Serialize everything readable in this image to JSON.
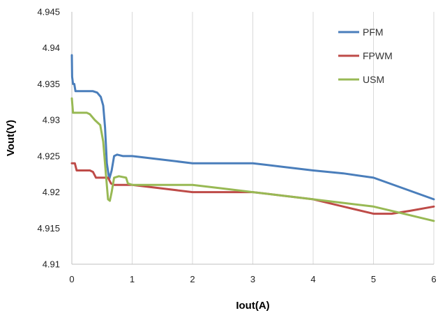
{
  "chart_data": {
    "type": "line",
    "title": "",
    "xlabel": "Iout(A)",
    "ylabel": "Vout(V)",
    "xlim": [
      0,
      6
    ],
    "ylim": [
      4.91,
      4.945
    ],
    "x_ticks": [
      "0",
      "1",
      "2",
      "3",
      "4",
      "5",
      "6"
    ],
    "y_ticks": [
      "4.91",
      "4.915",
      "4.92",
      "4.925",
      "4.93",
      "4.935",
      "4.94",
      "4.945"
    ],
    "grid": "vertical",
    "legend_position": "top-right",
    "series": [
      {
        "name": "PFM",
        "color": "#4a7ebb",
        "points": [
          [
            0,
            4.939
          ],
          [
            0.005,
            4.936
          ],
          [
            0.02,
            4.935
          ],
          [
            0.04,
            4.935
          ],
          [
            0.06,
            4.934
          ],
          [
            0.35,
            4.934
          ],
          [
            0.42,
            4.9338
          ],
          [
            0.48,
            4.9332
          ],
          [
            0.52,
            4.932
          ],
          [
            0.55,
            4.929
          ],
          [
            0.58,
            4.924
          ],
          [
            0.62,
            4.9218
          ],
          [
            0.66,
            4.923
          ],
          [
            0.7,
            4.925
          ],
          [
            0.75,
            4.9252
          ],
          [
            0.85,
            4.925
          ],
          [
            1.0,
            4.925
          ],
          [
            1.5,
            4.9245
          ],
          [
            2.0,
            4.924
          ],
          [
            2.5,
            4.924
          ],
          [
            3.0,
            4.924
          ],
          [
            3.5,
            4.9235
          ],
          [
            4.0,
            4.923
          ],
          [
            4.5,
            4.9226
          ],
          [
            5.0,
            4.922
          ],
          [
            5.5,
            4.9205
          ],
          [
            6.0,
            4.919
          ]
        ]
      },
      {
        "name": "FPWM",
        "color": "#be4b48",
        "points": [
          [
            0,
            4.924
          ],
          [
            0.05,
            4.924
          ],
          [
            0.08,
            4.923
          ],
          [
            0.3,
            4.923
          ],
          [
            0.35,
            4.9228
          ],
          [
            0.4,
            4.922
          ],
          [
            0.5,
            4.922
          ],
          [
            0.6,
            4.922
          ],
          [
            0.65,
            4.9212
          ],
          [
            0.7,
            4.921
          ],
          [
            1.0,
            4.921
          ],
          [
            1.5,
            4.9205
          ],
          [
            2.0,
            4.92
          ],
          [
            2.5,
            4.92
          ],
          [
            3.0,
            4.92
          ],
          [
            3.5,
            4.9195
          ],
          [
            4.0,
            4.919
          ],
          [
            4.5,
            4.918
          ],
          [
            5.0,
            4.917
          ],
          [
            5.3,
            4.917
          ],
          [
            5.6,
            4.9174
          ],
          [
            6.0,
            4.918
          ]
        ]
      },
      {
        "name": "USM",
        "color": "#98b954",
        "points": [
          [
            0,
            4.933
          ],
          [
            0.02,
            4.931
          ],
          [
            0.25,
            4.931
          ],
          [
            0.3,
            4.9308
          ],
          [
            0.38,
            4.93
          ],
          [
            0.47,
            4.9293
          ],
          [
            0.52,
            4.927
          ],
          [
            0.56,
            4.923
          ],
          [
            0.6,
            4.919
          ],
          [
            0.63,
            4.9188
          ],
          [
            0.66,
            4.92
          ],
          [
            0.7,
            4.922
          ],
          [
            0.78,
            4.9222
          ],
          [
            0.9,
            4.922
          ],
          [
            0.93,
            4.9212
          ],
          [
            1.0,
            4.921
          ],
          [
            1.5,
            4.921
          ],
          [
            2.0,
            4.921
          ],
          [
            2.5,
            4.9205
          ],
          [
            3.0,
            4.92
          ],
          [
            3.5,
            4.9195
          ],
          [
            4.0,
            4.919
          ],
          [
            4.5,
            4.9185
          ],
          [
            5.0,
            4.918
          ],
          [
            5.5,
            4.917
          ],
          [
            6.0,
            4.916
          ]
        ]
      }
    ]
  }
}
